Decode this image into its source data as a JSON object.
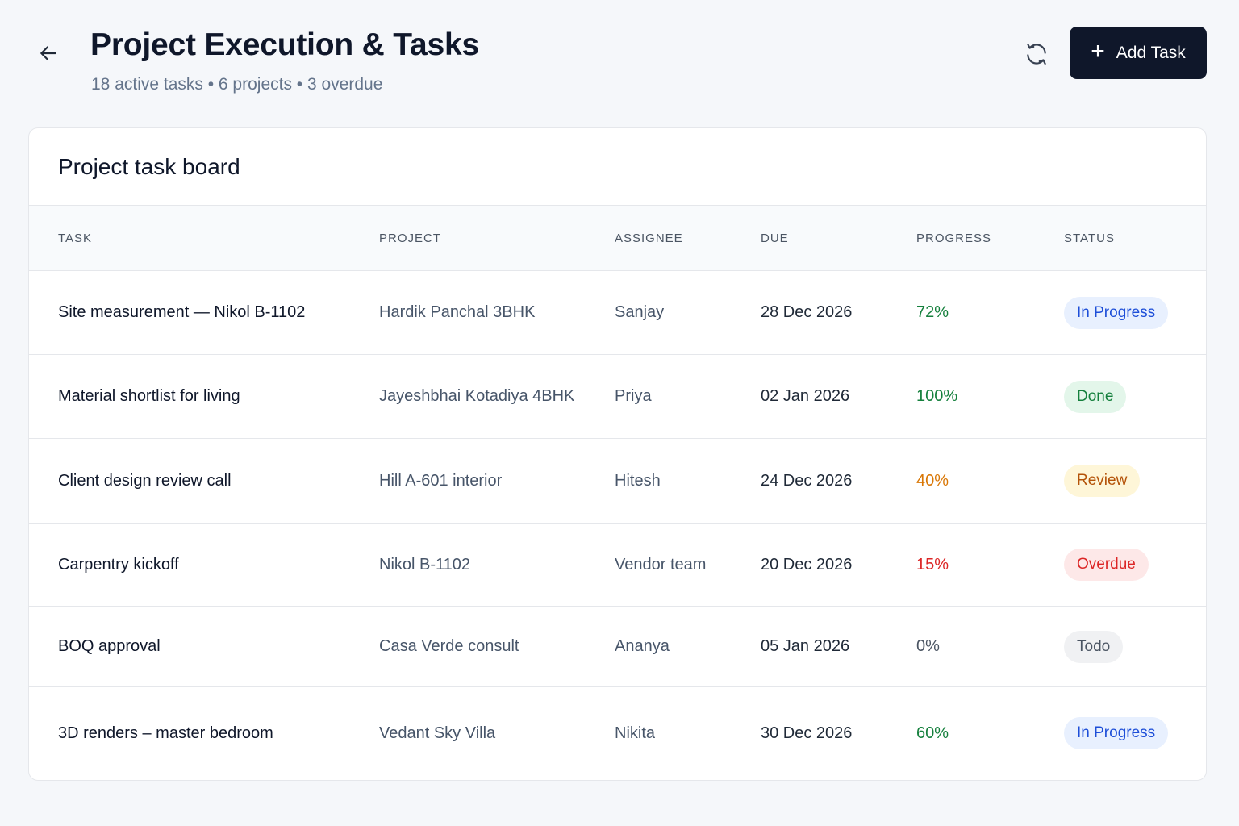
{
  "header": {
    "title": "Project Execution & Tasks",
    "subtitle": "18 active tasks • 6 projects • 3 overdue",
    "back_icon": "arrow-left-icon",
    "refresh_icon": "refresh-icon",
    "add_button": {
      "icon": "plus-icon",
      "label": "Add Task"
    }
  },
  "board": {
    "title": "Project task board",
    "columns": [
      "TASK",
      "PROJECT",
      "ASSIGNEE",
      "DUE",
      "PROGRESS",
      "STATUS"
    ],
    "rows": [
      {
        "task": "Site measurement — Nikol B-1102",
        "project": "Hardik Panchal 3BHK",
        "assignee": "Sanjay",
        "due": "28 Dec 2026",
        "progress": "72%",
        "status": "In Progress",
        "progress_color": "#15803d",
        "status_bg": "#e8f0fe",
        "status_color": "#1d4ed8"
      },
      {
        "task": "Material shortlist for living",
        "project": "Jayeshbhai Kotadiya 4BHK",
        "assignee": "Priya",
        "due": "02 Jan 2026",
        "progress": "100%",
        "status": "Done",
        "progress_color": "#15803d",
        "status_bg": "#e3f6ea",
        "status_color": "#15803d"
      },
      {
        "task": "Client design review call",
        "project": "Hill A-601 interior",
        "assignee": "Hitesh",
        "due": "24 Dec 2026",
        "progress": "40%",
        "status": "Review",
        "progress_color": "#d97706",
        "status_bg": "#fef6d8",
        "status_color": "#b45309"
      },
      {
        "task": "Carpentry kickoff",
        "project": "Nikol B-1102",
        "assignee": "Vendor team",
        "due": "20 Dec 2026",
        "progress": "15%",
        "status": "Overdue",
        "progress_color": "#dc2626",
        "status_bg": "#fde8e8",
        "status_color": "#dc2626"
      },
      {
        "task": "BOQ approval",
        "project": "Casa Verde consult",
        "assignee": "Ananya",
        "due": "05 Jan 2026",
        "progress": "0%",
        "status": "Todo",
        "progress_color": "#4b5563",
        "status_bg": "#f0f1f3",
        "status_color": "#4b5563"
      },
      {
        "task": "3D renders – master bedroom",
        "project": "Vedant Sky Villa",
        "assignee": "Nikita",
        "due": "30 Dec 2026",
        "progress": "60%",
        "status": "In Progress",
        "progress_color": "#15803d",
        "status_bg": "#e8f0fe",
        "status_color": "#1d4ed8"
      }
    ]
  }
}
